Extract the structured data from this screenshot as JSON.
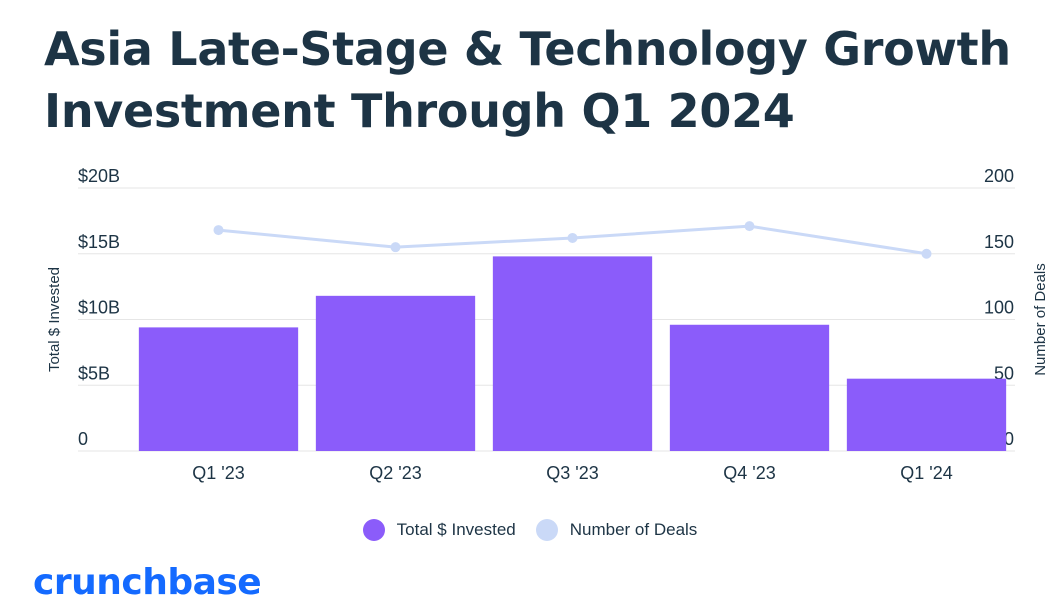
{
  "title": {
    "line1": "Asia Late-Stage & Technology Growth",
    "line2": "Investment Through Q1 2024"
  },
  "brand": "crunchbase",
  "colors": {
    "bar": "#8b5cfa",
    "line": "#cad9f7",
    "text": "#1d3445",
    "brand": "#146aff",
    "grid": "#e6e6e6"
  },
  "legend": [
    {
      "label": "Total $ Invested",
      "color": "#8b5cfa"
    },
    {
      "label": "Number of Deals",
      "color": "#cad9f7"
    }
  ],
  "chart_data": {
    "type": "bar",
    "categories": [
      "Q1 '23",
      "Q2 '23",
      "Q3 '23",
      "Q4 '23",
      "Q1 '24"
    ],
    "series": [
      {
        "name": "Total $ Invested",
        "type": "bar",
        "axis": "left",
        "values": [
          9.4,
          11.8,
          14.8,
          9.6,
          5.5
        ]
      },
      {
        "name": "Number of Deals",
        "type": "line",
        "axis": "right",
        "values": [
          168,
          155,
          162,
          171,
          150
        ]
      }
    ],
    "y_left": {
      "label": "Total $ Invested",
      "range": [
        0,
        20
      ],
      "ticks": [
        0,
        5,
        10,
        15,
        20
      ],
      "tick_labels": [
        "0",
        "$5B",
        "$10B",
        "$15B",
        "$20B"
      ]
    },
    "y_right": {
      "label": "Number of Deals",
      "range": [
        0,
        200
      ],
      "ticks": [
        0,
        50,
        100,
        150,
        200
      ],
      "tick_labels": [
        "0",
        "50",
        "100",
        "150",
        "200"
      ]
    },
    "grid": true,
    "legend_position": "bottom-center"
  }
}
